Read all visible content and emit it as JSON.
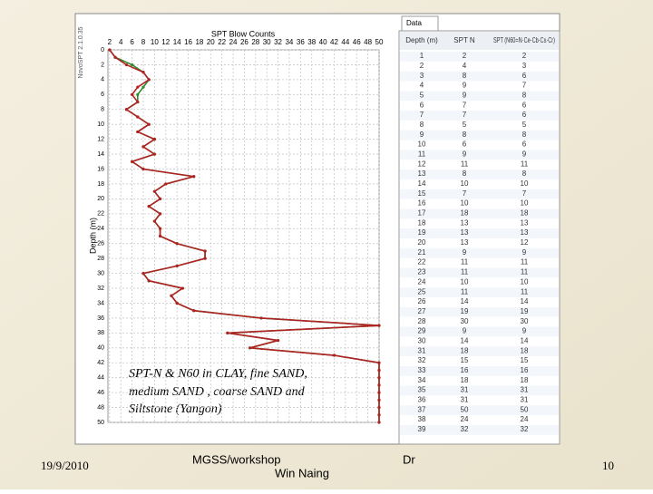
{
  "chart_data": {
    "type": "profile",
    "program": "NovoSPT 2.1.0.35",
    "x_label": "SPT Blow Counts",
    "y_label": "Depth (m)",
    "annotation": [
      "SPT-N & N60 in CLAY, fine SAND,",
      "medium SAND , coarse SAND and",
      "Siltstone (Yangon)"
    ],
    "y": [
      0,
      1,
      2,
      3,
      4,
      5,
      6,
      7,
      8,
      9,
      10,
      11,
      12,
      13,
      14,
      15,
      16,
      17,
      18,
      19,
      20,
      21,
      22,
      23,
      24,
      25,
      26,
      27,
      28,
      29,
      30,
      31,
      32,
      33,
      34,
      35,
      36,
      37,
      38,
      39,
      40,
      41,
      42,
      43,
      44,
      45,
      46,
      47,
      48,
      49,
      50
    ],
    "series": [
      {
        "color": "#b22222",
        "values": [
          2,
          3,
          5,
          8,
          9,
          7,
          6,
          7,
          5,
          7,
          9,
          7,
          10,
          8,
          10,
          6,
          8,
          17,
          12,
          10,
          11,
          9,
          11,
          10,
          11,
          11,
          14,
          19,
          19,
          14,
          8,
          9,
          15,
          13,
          14,
          17,
          29,
          50,
          23,
          32,
          27,
          42,
          50,
          50,
          50,
          50,
          50,
          50,
          50,
          50,
          50
        ]
      },
      {
        "color": "#2e8b2e",
        "values": [
          2,
          3,
          6,
          8,
          9,
          8,
          7,
          7,
          5,
          7,
          9,
          7,
          10,
          8,
          10,
          6,
          8,
          17,
          12,
          10,
          11,
          9,
          11,
          10,
          11,
          11,
          14,
          19,
          19,
          14,
          8,
          9,
          15,
          13,
          14,
          17,
          29,
          50,
          23,
          32,
          27,
          42,
          50,
          50,
          50,
          50,
          50,
          50,
          50,
          50,
          50
        ]
      }
    ],
    "xlim": [
      1.7,
      50
    ],
    "xticks": [
      2,
      4,
      6,
      8,
      10,
      12,
      14,
      16,
      18,
      20,
      22,
      24,
      26,
      28,
      30,
      32,
      34,
      36,
      38,
      40,
      42,
      44,
      46,
      48,
      50
    ],
    "ylim": [
      0,
      50
    ],
    "yticks": [
      0,
      2,
      4,
      6,
      8,
      10,
      12,
      14,
      16,
      18,
      20,
      22,
      24,
      26,
      28,
      30,
      32,
      34,
      36,
      38,
      40,
      42,
      44,
      46,
      48,
      50
    ],
    "grid": true
  },
  "table": {
    "tab": "Data",
    "header": [
      "Depth (m)",
      "SPT N",
      "SPT (N60=N·Ce·Cb·Cs·Cr)"
    ],
    "rows": [
      [
        1,
        2,
        2
      ],
      [
        2,
        4,
        3
      ],
      [
        3,
        8,
        6
      ],
      [
        4,
        9,
        7
      ],
      [
        5,
        9,
        8
      ],
      [
        6,
        7,
        6
      ],
      [
        7,
        7,
        6
      ],
      [
        8,
        5,
        5
      ],
      [
        9,
        8,
        8
      ],
      [
        10,
        6,
        6
      ],
      [
        11,
        9,
        9
      ],
      [
        12,
        11,
        11
      ],
      [
        13,
        8,
        8
      ],
      [
        14,
        10,
        10
      ],
      [
        15,
        7,
        7
      ],
      [
        16,
        10,
        10
      ],
      [
        17,
        18,
        18
      ],
      [
        18,
        13,
        13
      ],
      [
        19,
        13,
        13
      ],
      [
        20,
        13,
        12
      ],
      [
        21,
        9,
        9
      ],
      [
        22,
        11,
        11
      ],
      [
        23,
        11,
        11
      ],
      [
        24,
        10,
        10
      ],
      [
        25,
        11,
        11
      ],
      [
        26,
        14,
        14
      ],
      [
        27,
        19,
        19
      ],
      [
        28,
        30,
        30
      ],
      [
        29,
        9,
        9
      ],
      [
        30,
        14,
        14
      ],
      [
        31,
        18,
        18
      ],
      [
        32,
        15,
        15
      ],
      [
        33,
        16,
        16
      ],
      [
        34,
        18,
        18
      ],
      [
        35,
        31,
        31
      ],
      [
        36,
        31,
        31
      ],
      [
        37,
        50,
        50
      ],
      [
        38,
        24,
        24
      ],
      [
        39,
        32,
        32
      ]
    ]
  },
  "footer": {
    "date": "19/9/2010",
    "event": "MGSS/workshop",
    "author": "Win Naing",
    "title": "Dr",
    "page": "10"
  }
}
